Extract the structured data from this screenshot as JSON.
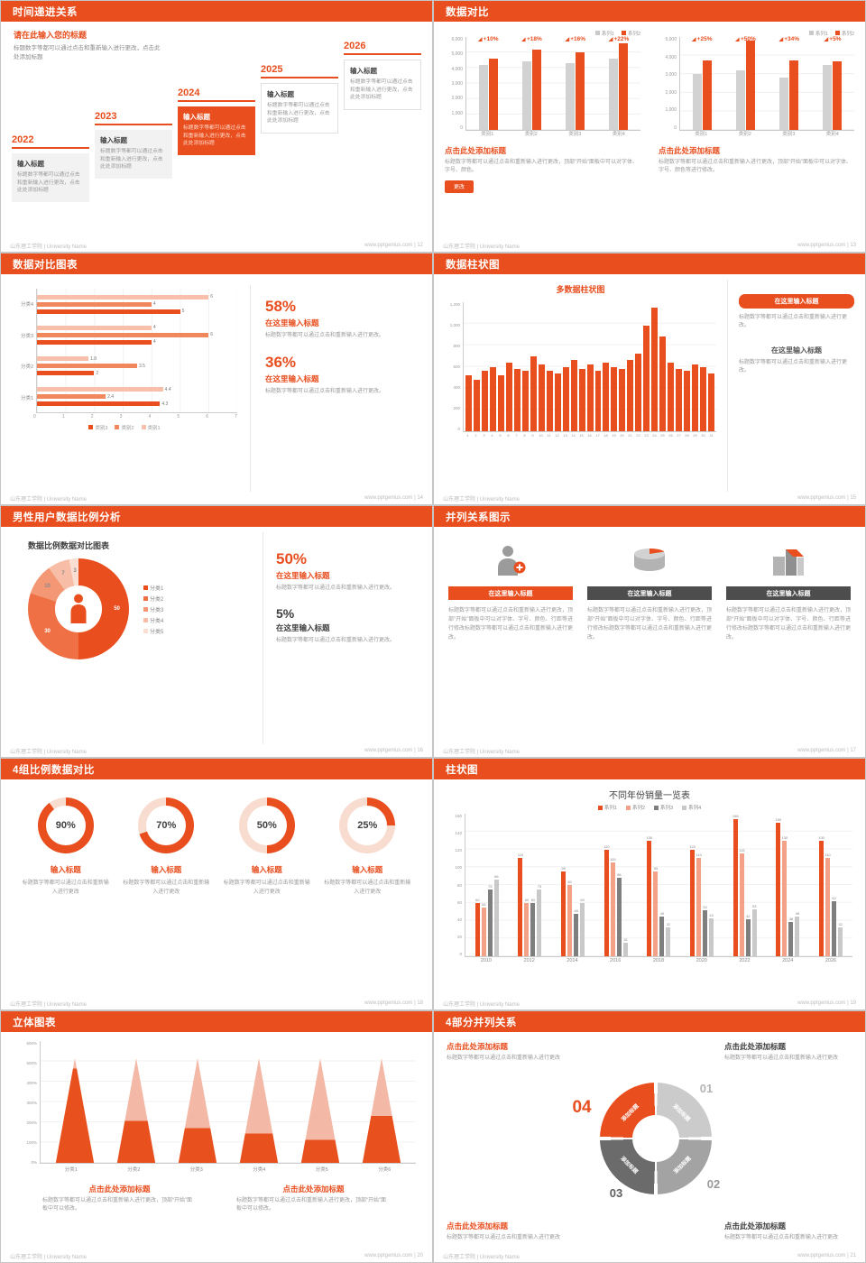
{
  "org": "山东理工学院 | University Name",
  "accent": "#e84e1e",
  "s12": {
    "title": "时间递进关系",
    "footer_right": "www.pptgenius.com | 12",
    "intro_title": "请在此输入您的标题",
    "intro_text": "标题数字等都可以通过点击和重新输入进行更改，点击此处添加标题",
    "items": [
      {
        "year": "2022",
        "label": "输入标题",
        "text": "标题数字等都可以通过点击和重新输入进行更改，点击此处添加标题"
      },
      {
        "year": "2023",
        "label": "输入标题",
        "text": "标题数字等都可以通过点击和重新输入进行更改，点击此处添加标题"
      },
      {
        "year": "2024",
        "label": "输入标题",
        "text": "标题数字等都可以通过点击和重新输入进行更改，点击此处添加标题"
      },
      {
        "year": "2025",
        "label": "输入标题",
        "text": "标题数字等都可以通过点击和重新输入进行更改，点击此处添加标题"
      },
      {
        "year": "2026",
        "label": "输入标题",
        "text": "标题数字等都可以通过点击和重新输入进行更改，点击此处添加标题"
      }
    ]
  },
  "s13": {
    "title": "数据对比",
    "footer_right": "www.pptgenius.com | 13",
    "charts": [
      {
        "type": "bar",
        "legend": [
          "系列1",
          "系列2"
        ],
        "ymax": 6000,
        "yticks": [
          "6,000",
          "5,000",
          "4,000",
          "3,000",
          "2,000",
          "1,000",
          "0"
        ],
        "categories": [
          "类别1",
          "类别2",
          "类别3",
          "类别4"
        ],
        "series1": [
          4200,
          4400,
          4300,
          4600
        ],
        "series2": [
          4620,
          5190,
          4990,
          5610
        ],
        "labels": [
          "+10%",
          "+18%",
          "+16%",
          "+22%"
        ]
      },
      {
        "type": "bar",
        "legend": [
          "系列1",
          "系列2"
        ],
        "ymax": 5000,
        "yticks": [
          "5,000",
          "4,000",
          "3,000",
          "2,000",
          "1,000",
          "0"
        ],
        "categories": [
          "类别1",
          "类别2",
          "类别3",
          "类别4"
        ],
        "series1": [
          3000,
          3200,
          2800,
          3500
        ],
        "series2": [
          3750,
          4800,
          3750,
          3675
        ],
        "labels": [
          "+25%",
          "+50%",
          "+34%",
          "+5%"
        ]
      }
    ],
    "blocks": [
      {
        "heading": "点击此处添加标题",
        "text": "标题数字等都可以通过点击和重新输入进行更改，顶部“开始”面板中可以对字体、字号、颜色。",
        "button": "更改"
      },
      {
        "heading": "点击此处添加标题",
        "text": "标题数字等都可以通过点击和重新输入进行更改，顶部“开始”面板中可以对字体、字号、颜色等进行修改。"
      }
    ]
  },
  "s14": {
    "title": "数据对比图表",
    "footer_right": "www.pptgenius.com | 14",
    "chart": {
      "type": "bar",
      "groups": [
        {
          "name": "分类4",
          "values": [
            6,
            4,
            5
          ]
        },
        {
          "name": "分类3",
          "values": [
            4,
            6,
            4
          ]
        },
        {
          "name": "分类2",
          "values": [
            1.8,
            3.5,
            2
          ]
        },
        {
          "name": "分类1",
          "values": [
            4.4,
            2.4,
            4.3
          ]
        }
      ],
      "xmax": 7,
      "xticks": [
        "0",
        "1",
        "2",
        "3",
        "4",
        "5",
        "6",
        "7"
      ],
      "legend": [
        "类别3",
        "类别2",
        "类别1"
      ]
    },
    "stats": [
      {
        "value": "58%",
        "heading": "在这里输入标题",
        "text": "标题数字等都可以通过点击和重新输入进行更改。"
      },
      {
        "value": "36%",
        "heading": "在这里输入标题",
        "text": "标题数字等都可以通过点击和重新输入进行更改。"
      }
    ]
  },
  "s15": {
    "title": "数据柱状图",
    "footer_right": "www.pptgenius.com | 15",
    "chart": {
      "type": "bar",
      "title": "多数据柱状图",
      "ymax": 1200,
      "yticks": [
        "1,200",
        "1,000",
        "800",
        "600",
        "400",
        "200",
        "0"
      ],
      "values": [
        520,
        480,
        560,
        600,
        520,
        640,
        580,
        560,
        700,
        620,
        560,
        540,
        600,
        660,
        580,
        620,
        560,
        640,
        600,
        580,
        660,
        720,
        980,
        1150,
        880,
        640,
        580,
        560,
        620,
        600,
        540
      ],
      "xlabels": [
        "1",
        "2",
        "3",
        "4",
        "5",
        "6",
        "7",
        "8",
        "9",
        "10",
        "11",
        "12",
        "13",
        "14",
        "15",
        "16",
        "17",
        "18",
        "19",
        "20",
        "21",
        "22",
        "23",
        "24",
        "25",
        "26",
        "27",
        "28",
        "29",
        "30",
        "31"
      ]
    },
    "blocks": [
      {
        "button": "在这里输入标题",
        "text": "标题数字等都可以通过点击和重新输入进行更改。"
      },
      {
        "heading": "在这里输入标题",
        "text": "标题数字等都可以通过点击和重新输入进行更改。"
      }
    ]
  },
  "s16": {
    "title": "男性用户数据比例分析",
    "footer_right": "www.pptgenius.com | 16",
    "chart_title": "数据比例数据对比图表",
    "donut": {
      "type": "pie",
      "values": [
        50,
        30,
        10,
        7,
        3
      ],
      "labels": [
        "50",
        "30",
        "10",
        "7",
        "3"
      ],
      "legend": [
        "分类1",
        "分类2",
        "分类3",
        "分类4",
        "分类5"
      ],
      "colors": [
        "#e84e1e",
        "#ef7044",
        "#f49774",
        "#f8bda6",
        "#fbded2"
      ]
    },
    "stats": [
      {
        "value": "50%",
        "heading": "在这里输入标题",
        "text": "标题数字等都可以通过点击和重新输入进行更改。"
      },
      {
        "value": "5%",
        "heading": "在这里输入标题",
        "text": "标题数字等都可以通过点击和重新输入进行更改。"
      }
    ]
  },
  "s17": {
    "title": "并列关系图示",
    "footer_right": "www.pptgenius.com | 17",
    "columns": [
      {
        "icon": "person-plus-icon",
        "button": "在这里输入标题",
        "text": "标题数字等都可以通过点击和重新输入进行更改，顶部“开始”面板中可以对字体、字号、颜色、行距等进行修改标题数字等都可以通过点击和重新输入进行更改。"
      },
      {
        "icon": "cylinder-icon",
        "button": "在这里输入标题",
        "text": "标题数字等都可以通过点击和重新输入进行更改，顶部“开始”面板中可以对字体、字号、颜色、行距等进行修改标题数字等都可以通过点击和重新输入进行更改。"
      },
      {
        "icon": "building-icon",
        "button": "在这里输入标题",
        "text": "标题数字等都可以通过点击和重新输入进行更改，顶部“开始”面板中可以对字体、字号、颜色、行距等进行修改标题数字等都可以通过点击和重新输入进行更改。"
      }
    ]
  },
  "s18": {
    "title": "4组比例数据对比",
    "footer_right": "www.pptgenius.com | 18",
    "rings": [
      {
        "percent": 90,
        "label": "90%",
        "heading": "输入标题",
        "text": "标题数字等都可以通过点击和重新输入进行更改"
      },
      {
        "percent": 70,
        "label": "70%",
        "heading": "输入标题",
        "text": "标题数字等都可以通过点击和重新输入进行更改"
      },
      {
        "percent": 50,
        "label": "50%",
        "heading": "输入标题",
        "text": "标题数字等都可以通过点击和重新输入进行更改"
      },
      {
        "percent": 25,
        "label": "25%",
        "heading": "输入标题",
        "text": "标题数字等都可以通过点击和重新输入进行更改"
      }
    ]
  },
  "s19": {
    "title": "柱状图",
    "footer_right": "www.pptgenius.com | 19",
    "chart": {
      "type": "bar",
      "title": "不同年份销量一览表",
      "legend": [
        "系列1",
        "系列2",
        "系列3",
        "系列4"
      ],
      "colors": [
        "#e84e1e",
        "#f4a287",
        "#7f7f7f",
        "#c9c9c9"
      ],
      "categories": [
        "2010",
        "2012",
        "2014",
        "2016",
        "2018",
        "2020",
        "2022",
        "2024",
        "2026"
      ],
      "series": [
        {
          "name": "系列1",
          "values": [
            60,
            110,
            95,
            120,
            130,
            120,
            158,
            150,
            130
          ]
        },
        {
          "name": "系列2",
          "values": [
            55,
            60,
            80,
            105,
            95,
            110,
            115,
            130,
            110
          ]
        },
        {
          "name": "系列3",
          "values": [
            75,
            60,
            48,
            88,
            45,
            52,
            42,
            38,
            62
          ]
        },
        {
          "name": "系列4",
          "values": [
            86,
            75,
            60,
            15,
            32,
            43,
            53,
            45,
            32
          ]
        }
      ],
      "ymax": 160,
      "yticks": [
        "160",
        "140",
        "120",
        "100",
        "80",
        "60",
        "40",
        "20",
        "0"
      ]
    }
  },
  "s20": {
    "title": "立体图表",
    "footer_right": "www.pptgenius.com | 20",
    "chart": {
      "type": "bar",
      "categories": [
        "分类1",
        "分类2",
        "分类3",
        "分类4",
        "分类5",
        "分类6"
      ],
      "fill": [
        0.9,
        0.4,
        0.33,
        0.28,
        0.22,
        0.45
      ],
      "yticks": [
        "600%",
        "500%",
        "400%",
        "300%",
        "200%",
        "100%",
        "0%"
      ]
    },
    "blocks": [
      {
        "heading": "点击此处添加标题",
        "text": "标题数字等都可以通过点击和重新输入进行更改，顶部“开始”面板中可以修改。"
      },
      {
        "heading": "点击此处添加标题",
        "text": "标题数字等都可以通过点击和重新输入进行更改，顶部“开始”面板中可以修改。"
      }
    ]
  },
  "s21": {
    "title": "4部分并列关系",
    "footer_right": "www.pptgenius.com | 21",
    "wheel": {
      "colors": [
        "#cbcbcb",
        "#a3a3a3",
        "#6b6b6b",
        "#e84e1e"
      ],
      "segments": [
        "添加标题",
        "添加标题",
        "添加标题",
        "添加标题"
      ],
      "numbers": [
        "01",
        "02",
        "03",
        "04"
      ]
    },
    "blocks": [
      {
        "heading": "点击此处添加标题",
        "text": "标题数字等都可以通过点击和重新输入进行更改"
      },
      {
        "heading": "点击此处添加标题",
        "text": "标题数字等都可以通过点击和重新输入进行更改"
      },
      {
        "heading": "点击此处添加标题",
        "text": "标题数字等都可以通过点击和重新输入进行更改"
      },
      {
        "heading": "点击此处添加标题",
        "text": "标题数字等都可以通过点击和重新输入进行更改"
      }
    ]
  }
}
